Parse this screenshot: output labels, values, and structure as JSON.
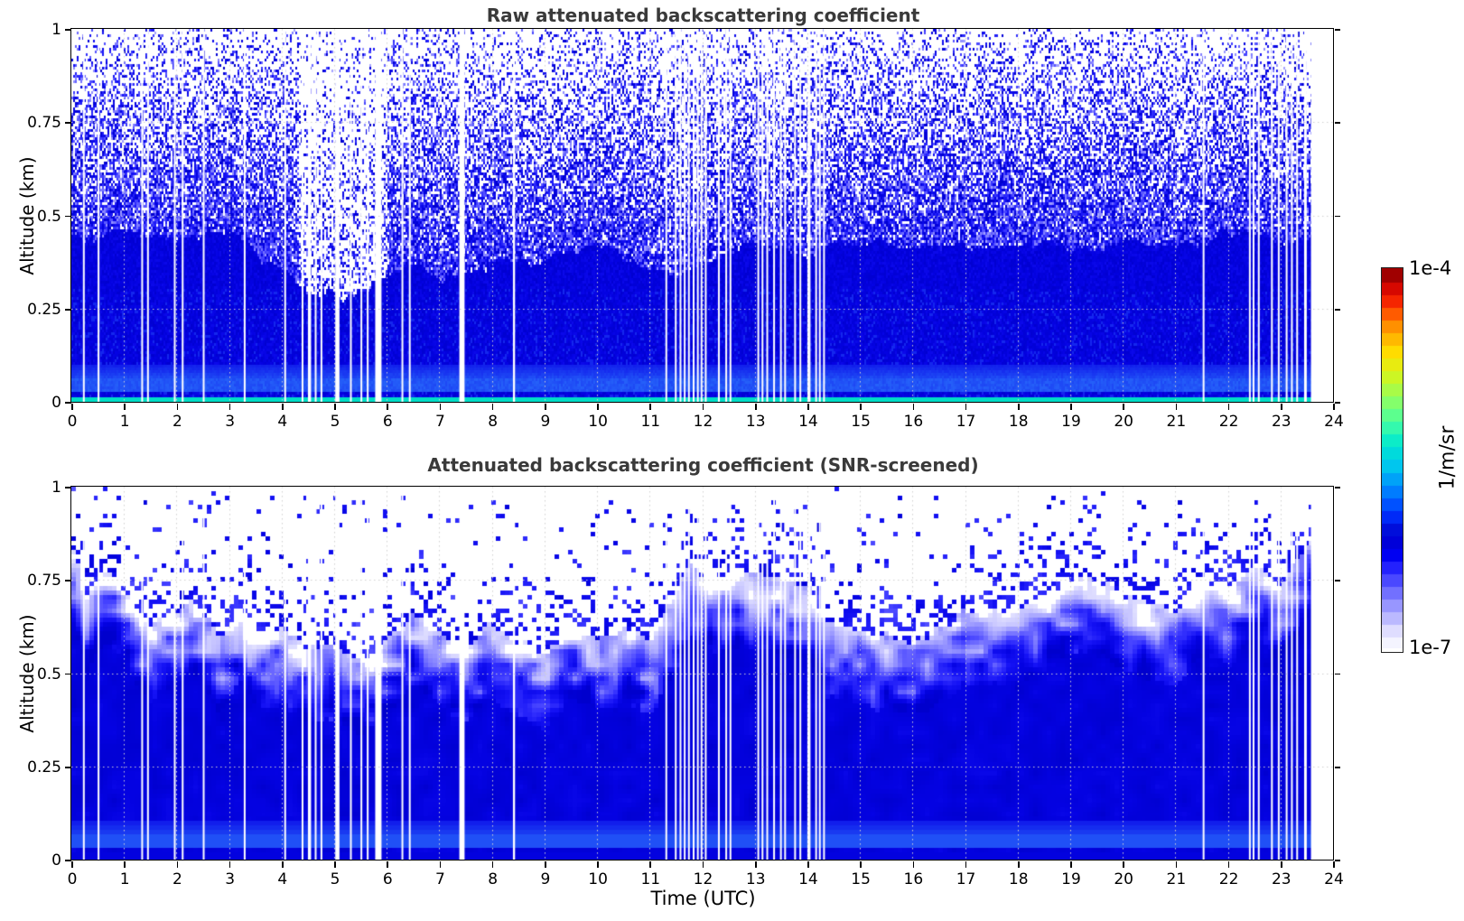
{
  "figure": {
    "background": "#ffffff"
  },
  "xlabel": "Time (UTC)",
  "chart_data": [
    {
      "type": "heatmap",
      "title": "Raw attenuated backscattering coefficient",
      "ylabel": "Altitude (km)",
      "xlim": [
        0,
        24
      ],
      "ylim": [
        0,
        1
      ],
      "xticks": [
        0,
        1,
        2,
        3,
        4,
        5,
        6,
        7,
        8,
        9,
        10,
        11,
        12,
        13,
        14,
        15,
        16,
        17,
        18,
        19,
        20,
        21,
        22,
        23,
        24
      ],
      "yticks": [
        0,
        0.25,
        0.5,
        0.75,
        1
      ],
      "ytick_labels": [
        "0",
        "0.25",
        "0.5",
        "0.75",
        "1"
      ],
      "grid": {
        "x_hours": [
          1,
          2,
          3,
          4,
          5,
          6,
          7,
          8,
          9,
          10,
          11,
          12,
          13,
          14,
          15,
          16,
          17,
          18,
          19,
          20,
          21,
          22,
          23
        ],
        "y_values": [
          0.25,
          0.5,
          0.75
        ],
        "style": "dotted"
      },
      "value_scale": {
        "min_label": "1e-7",
        "max_label": "1e-4",
        "units": "1/m/sr",
        "log": true
      },
      "description": "Dense speckled instrument noise (white to blue, ~1e-7 to 1e-6 1/m/sr) above a solid blue aerosol layer; solid signal below ~0.3-0.48 km, brighter blue bands (~1e-5.7) at 0.03-0.10 km and a cyan surface line (~1e-5.3) at 0-0.015 km; thin white columns are data gaps; data end at 23.58 UTC.",
      "data_end_hour": 23.58,
      "surface_cyan_layer_top_km": 0.015,
      "light_band_km": [
        0.03,
        0.1
      ],
      "sparse_intervals": [
        [
          4.3,
          6.0
        ]
      ],
      "solid_top_profile": [
        [
          0,
          0.44
        ],
        [
          1,
          0.42
        ],
        [
          2,
          0.4
        ],
        [
          3,
          0.42
        ],
        [
          4,
          0.36
        ],
        [
          4.5,
          0.3
        ],
        [
          5,
          0.28
        ],
        [
          5.5,
          0.28
        ],
        [
          6,
          0.32
        ],
        [
          7,
          0.36
        ],
        [
          8,
          0.34
        ],
        [
          9,
          0.38
        ],
        [
          10,
          0.38
        ],
        [
          11,
          0.36
        ],
        [
          11.5,
          0.32
        ],
        [
          12,
          0.35
        ],
        [
          12.5,
          0.38
        ],
        [
          13,
          0.4
        ],
        [
          13.5,
          0.38
        ],
        [
          14,
          0.36
        ],
        [
          14.5,
          0.44
        ],
        [
          15,
          0.46
        ],
        [
          16,
          0.45
        ],
        [
          17,
          0.44
        ],
        [
          18,
          0.46
        ],
        [
          19,
          0.44
        ],
        [
          20,
          0.45
        ],
        [
          21,
          0.44
        ],
        [
          22,
          0.46
        ],
        [
          23,
          0.46
        ],
        [
          23.6,
          0.48
        ]
      ],
      "gaps": [
        [
          0.22,
          0.25
        ],
        [
          0.5,
          0.53
        ],
        [
          1.33,
          1.36
        ],
        [
          1.44,
          1.47
        ],
        [
          1.95,
          1.98
        ],
        [
          2.1,
          2.12
        ],
        [
          2.5,
          2.53
        ],
        [
          3.28,
          3.31
        ],
        [
          4.05,
          4.08
        ],
        [
          4.38,
          4.41
        ],
        [
          4.5,
          4.56
        ],
        [
          4.63,
          4.66
        ],
        [
          4.74,
          4.77
        ],
        [
          5.02,
          5.1
        ],
        [
          5.3,
          5.33
        ],
        [
          5.5,
          5.53
        ],
        [
          5.62,
          5.65
        ],
        [
          5.78,
          5.9
        ],
        [
          6.28,
          6.31
        ],
        [
          6.42,
          6.45
        ],
        [
          7.38,
          7.48
        ],
        [
          8.4,
          8.44
        ],
        [
          11.3,
          11.33
        ],
        [
          11.48,
          11.51
        ],
        [
          11.57,
          11.6
        ],
        [
          11.65,
          11.68
        ],
        [
          11.73,
          11.76
        ],
        [
          11.82,
          11.85
        ],
        [
          11.9,
          11.93
        ],
        [
          11.97,
          12.0
        ],
        [
          12.05,
          12.08
        ],
        [
          12.3,
          12.33
        ],
        [
          12.44,
          12.47
        ],
        [
          12.52,
          12.55
        ],
        [
          13.05,
          13.08
        ],
        [
          13.13,
          13.16
        ],
        [
          13.22,
          13.25
        ],
        [
          13.35,
          13.38
        ],
        [
          13.48,
          13.51
        ],
        [
          13.56,
          13.59
        ],
        [
          13.75,
          13.78
        ],
        [
          13.85,
          13.88
        ],
        [
          14.0,
          14.06
        ],
        [
          14.15,
          14.18
        ],
        [
          14.22,
          14.25
        ],
        [
          14.3,
          14.33
        ],
        [
          21.52,
          21.55
        ],
        [
          22.4,
          22.43
        ],
        [
          22.47,
          22.5
        ],
        [
          22.57,
          22.6
        ],
        [
          22.82,
          22.85
        ],
        [
          22.95,
          22.98
        ],
        [
          23.1,
          23.13
        ],
        [
          23.2,
          23.23
        ],
        [
          23.3,
          23.33
        ],
        [
          23.45,
          23.5
        ]
      ]
    },
    {
      "type": "heatmap",
      "title": "Attenuated backscattering coefficient (SNR-screened)",
      "ylabel": "Altitude (km)",
      "xlim": [
        0,
        24
      ],
      "ylim": [
        0,
        1
      ],
      "xticks": [
        0,
        1,
        2,
        3,
        4,
        5,
        6,
        7,
        8,
        9,
        10,
        11,
        12,
        13,
        14,
        15,
        16,
        17,
        18,
        19,
        20,
        21,
        22,
        23,
        24
      ],
      "yticks": [
        0,
        0.25,
        0.5,
        0.75,
        1
      ],
      "ytick_labels": [
        "0",
        "0.25",
        "0.5",
        "0.75",
        "1"
      ],
      "grid": {
        "x_hours": [
          1,
          2,
          3,
          4,
          5,
          6,
          7,
          8,
          9,
          10,
          11,
          12,
          13,
          14,
          15,
          16,
          17,
          18,
          19,
          20,
          21,
          22,
          23
        ],
        "y_values": [
          0.25,
          0.5,
          0.75
        ],
        "style": "dotted"
      },
      "value_scale": {
        "min_label": "1e-7",
        "max_label": "1e-4",
        "units": "1/m/sr",
        "log": true
      },
      "description": "Same field after SNR screening: solid blue boundary-layer signal up to a varying top (~0.55-0.85 km), fading through periwinkle/lavender blocky texture to white (screened-out) air above with scattered blue speckles up to ~0.97 km; same gap columns and 23.58 UTC data end.",
      "data_end_hour": 23.58,
      "surface_cyan_layer_top_km": 0.015,
      "light_band_km": [
        0.03,
        0.1
      ],
      "speckle_top_km": 0.97,
      "cloud_top_profile": [
        [
          0,
          0.85
        ],
        [
          0.3,
          0.7
        ],
        [
          0.7,
          0.78
        ],
        [
          1,
          0.72
        ],
        [
          1.5,
          0.62
        ],
        [
          2,
          0.68
        ],
        [
          2.3,
          0.75
        ],
        [
          2.8,
          0.64
        ],
        [
          3.2,
          0.72
        ],
        [
          3.7,
          0.62
        ],
        [
          4,
          0.65
        ],
        [
          4.5,
          0.6
        ],
        [
          5,
          0.62
        ],
        [
          5.5,
          0.58
        ],
        [
          6,
          0.62
        ],
        [
          6.5,
          0.7
        ],
        [
          7,
          0.65
        ],
        [
          7.5,
          0.6
        ],
        [
          8,
          0.68
        ],
        [
          8.5,
          0.62
        ],
        [
          9,
          0.6
        ],
        [
          9.5,
          0.65
        ],
        [
          10,
          0.6
        ],
        [
          10.5,
          0.62
        ],
        [
          11,
          0.58
        ],
        [
          11.5,
          0.68
        ],
        [
          11.8,
          0.78
        ],
        [
          12,
          0.75
        ],
        [
          12.5,
          0.78
        ],
        [
          13,
          0.82
        ],
        [
          13.5,
          0.8
        ],
        [
          14,
          0.78
        ],
        [
          14.3,
          0.68
        ],
        [
          15,
          0.65
        ],
        [
          15.5,
          0.62
        ],
        [
          16,
          0.6
        ],
        [
          16.5,
          0.65
        ],
        [
          17,
          0.7
        ],
        [
          17.5,
          0.68
        ],
        [
          18,
          0.66
        ],
        [
          18.5,
          0.72
        ],
        [
          19,
          0.78
        ],
        [
          19.5,
          0.75
        ],
        [
          20,
          0.72
        ],
        [
          20.5,
          0.7
        ],
        [
          21,
          0.68
        ],
        [
          21.5,
          0.72
        ],
        [
          22,
          0.68
        ],
        [
          22.5,
          0.74
        ],
        [
          23,
          0.7
        ],
        [
          23.3,
          0.78
        ],
        [
          23.6,
          0.85
        ]
      ],
      "gaps": [
        [
          0.22,
          0.25
        ],
        [
          0.5,
          0.53
        ],
        [
          1.33,
          1.36
        ],
        [
          1.44,
          1.47
        ],
        [
          1.95,
          1.98
        ],
        [
          2.1,
          2.12
        ],
        [
          2.5,
          2.53
        ],
        [
          3.28,
          3.31
        ],
        [
          4.05,
          4.08
        ],
        [
          4.38,
          4.41
        ],
        [
          4.5,
          4.56
        ],
        [
          4.63,
          4.66
        ],
        [
          4.74,
          4.77
        ],
        [
          5.02,
          5.1
        ],
        [
          5.3,
          5.33
        ],
        [
          5.5,
          5.53
        ],
        [
          5.62,
          5.65
        ],
        [
          5.78,
          5.9
        ],
        [
          6.28,
          6.31
        ],
        [
          6.42,
          6.45
        ],
        [
          7.38,
          7.48
        ],
        [
          8.4,
          8.44
        ],
        [
          11.3,
          11.33
        ],
        [
          11.48,
          11.51
        ],
        [
          11.57,
          11.6
        ],
        [
          11.65,
          11.68
        ],
        [
          11.73,
          11.76
        ],
        [
          11.82,
          11.85
        ],
        [
          11.9,
          11.93
        ],
        [
          11.97,
          12.0
        ],
        [
          12.05,
          12.08
        ],
        [
          12.3,
          12.33
        ],
        [
          12.44,
          12.47
        ],
        [
          12.52,
          12.55
        ],
        [
          13.05,
          13.08
        ],
        [
          13.13,
          13.16
        ],
        [
          13.22,
          13.25
        ],
        [
          13.35,
          13.38
        ],
        [
          13.48,
          13.51
        ],
        [
          13.56,
          13.59
        ],
        [
          13.75,
          13.78
        ],
        [
          13.85,
          13.88
        ],
        [
          14.0,
          14.06
        ],
        [
          14.15,
          14.18
        ],
        [
          14.22,
          14.25
        ],
        [
          14.3,
          14.33
        ],
        [
          21.52,
          21.55
        ],
        [
          22.4,
          22.43
        ],
        [
          22.47,
          22.5
        ],
        [
          22.57,
          22.6
        ],
        [
          22.82,
          22.85
        ],
        [
          22.95,
          22.98
        ],
        [
          23.1,
          23.13
        ],
        [
          23.2,
          23.23
        ],
        [
          23.3,
          23.33
        ],
        [
          23.45,
          23.5
        ]
      ]
    }
  ],
  "colorbar": {
    "top_label": "1e-4",
    "bottom_label": "1e-7",
    "units_label": "1/m/sr",
    "segments": 30,
    "stops": [
      [
        0,
        "#ffffff"
      ],
      [
        0.03,
        "#ecebff"
      ],
      [
        0.06,
        "#d8d6ff"
      ],
      [
        0.09,
        "#b3b1ff"
      ],
      [
        0.13,
        "#8a88ff"
      ],
      [
        0.17,
        "#5a58ff"
      ],
      [
        0.21,
        "#2a28ff"
      ],
      [
        0.25,
        "#0000f2"
      ],
      [
        0.3,
        "#0000cd"
      ],
      [
        0.36,
        "#0033ff"
      ],
      [
        0.42,
        "#0080ff"
      ],
      [
        0.48,
        "#00c4f0"
      ],
      [
        0.54,
        "#00e8d0"
      ],
      [
        0.6,
        "#48ffa0"
      ],
      [
        0.66,
        "#90ff60"
      ],
      [
        0.72,
        "#d0f520"
      ],
      [
        0.78,
        "#ffe000"
      ],
      [
        0.84,
        "#ffa000"
      ],
      [
        0.89,
        "#ff5000"
      ],
      [
        0.93,
        "#f01000"
      ],
      [
        0.97,
        "#bb0000"
      ],
      [
        1,
        "#7f0000"
      ]
    ]
  },
  "heat_palette": {
    "stops": [
      [
        0,
        "#ffffff"
      ],
      [
        0.12,
        "#e4e3ff"
      ],
      [
        0.25,
        "#c0beff"
      ],
      [
        0.38,
        "#9593ff"
      ],
      [
        0.5,
        "#6663ff"
      ],
      [
        0.62,
        "#3b38ff"
      ],
      [
        0.75,
        "#1512f5"
      ],
      [
        0.88,
        "#0402e2"
      ],
      [
        1,
        "#0000cd"
      ]
    ],
    "band_color": "#2e7fff",
    "cyan_color": "#00dcc6",
    "grid_color": "#d0d0d0"
  }
}
